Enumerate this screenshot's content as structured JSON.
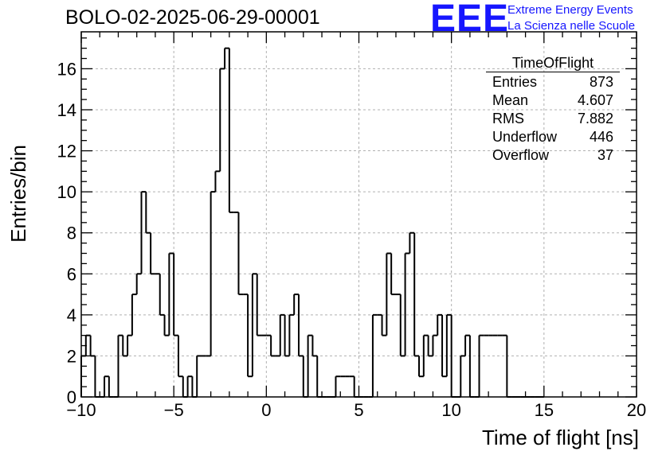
{
  "header": {
    "run_title": "BOLO-02-2025-06-29-00001",
    "logo_text": "EEE",
    "logo_line1": "Extreme Energy Events",
    "logo_line2": "La Scienza nelle Scuole"
  },
  "stats_box": {
    "title": "TimeOfFlight",
    "rows": [
      {
        "label": "Entries",
        "value": "873"
      },
      {
        "label": "Mean",
        "value": "4.607"
      },
      {
        "label": "RMS",
        "value": "7.882"
      },
      {
        "label": "Underflow",
        "value": "446"
      },
      {
        "label": "Overflow",
        "value": "37"
      }
    ]
  },
  "colors": {
    "accent": "#1616ff",
    "line": "#000000",
    "grid": "#b0b0b0"
  },
  "chart_data": {
    "type": "histogram",
    "title": "BOLO-02-2025-06-29-00001",
    "xlabel": "Time of flight [ns]",
    "ylabel": "Entries/bin",
    "xlim": [
      -10,
      20
    ],
    "ylim": [
      0,
      17.8
    ],
    "bin_width": 0.25,
    "x_ticks": [
      -10,
      -5,
      0,
      5,
      10,
      15,
      20
    ],
    "x_tick_labels": [
      "−10",
      "−5",
      "0",
      "5",
      "10",
      "15",
      "20"
    ],
    "y_ticks": [
      0,
      2,
      4,
      6,
      8,
      10,
      12,
      14,
      16
    ],
    "y_tick_labels": [
      "0",
      "2",
      "4",
      "6",
      "8",
      "10",
      "12",
      "14",
      "16"
    ],
    "grid": true,
    "bin_edges_start": -10,
    "values": [
      2,
      3,
      2,
      0,
      0,
      1,
      0,
      0,
      3,
      2,
      3,
      5,
      6,
      10,
      8,
      6,
      6,
      4,
      3,
      7,
      3,
      1,
      0,
      1,
      0,
      2,
      2,
      2,
      10,
      11,
      16,
      17,
      9,
      9,
      5,
      5,
      1,
      6,
      3,
      3,
      3,
      2,
      2,
      4,
      2,
      4,
      5,
      2,
      0,
      3,
      2,
      0,
      0,
      0,
      0,
      1,
      1,
      1,
      1,
      0,
      0,
      0,
      0,
      4,
      4,
      3,
      7,
      5,
      5,
      2,
      7,
      8,
      2,
      1,
      3,
      2,
      3,
      4,
      1,
      4,
      0,
      0,
      2,
      3,
      0,
      0,
      3,
      3,
      3,
      3,
      3,
      3,
      0,
      0,
      0,
      0,
      0,
      0,
      0,
      0
    ]
  }
}
